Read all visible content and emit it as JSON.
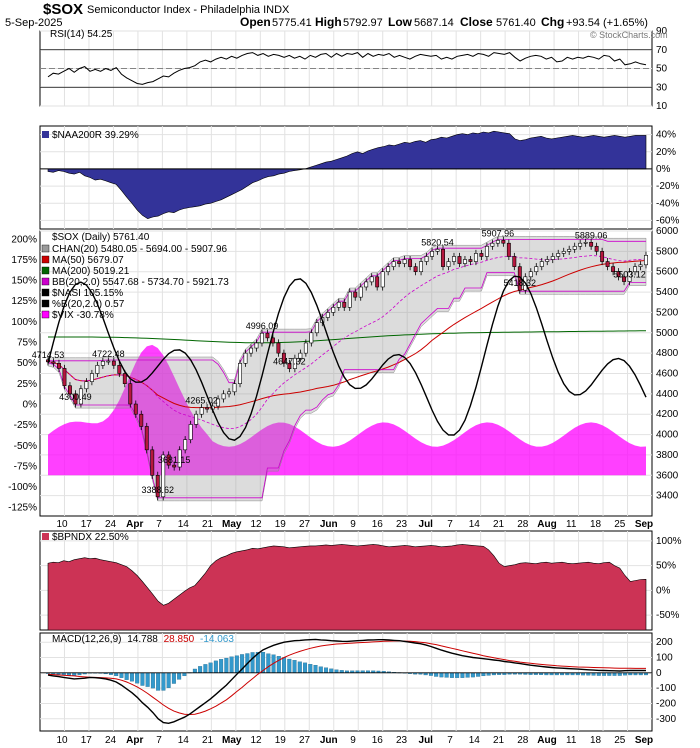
{
  "header": {
    "symbol": "$SOX",
    "name": "Semiconductor Index - Philadelphia INDX",
    "date": "5-Sep-2025",
    "open_label": "Open",
    "open": "5775.41",
    "high_label": "High",
    "high": "5792.97",
    "low_label": "Low",
    "low": "5687.14",
    "close_label": "Close",
    "close": "5761.40",
    "chg_label": "Chg",
    "chg": "+93.54 (+1.65%)",
    "watermark": "© StockCharts.com"
  },
  "colors": {
    "rsi_line": "#000000",
    "naa_fill": "#333399",
    "up_candle": "#ffffff",
    "down_candle": "#b5173e",
    "ma50": "#cc0000",
    "ma200": "#006600",
    "bb": "#cc00cc",
    "channel_fill": "#9a9a9a",
    "nasi": "#000000",
    "vix": "#ff00ff",
    "bpndx_fill": "#cc3355",
    "macd": "#000000",
    "signal": "#cc0000",
    "hist": "#3399cc"
  },
  "chart_data": [
    {
      "type": "line",
      "panel": "rsi",
      "legend": "RSI(14) 54.25",
      "ylim": [
        10,
        90
      ],
      "yticks": [
        10,
        30,
        50,
        70,
        90
      ],
      "reference_lines": [
        30,
        70
      ],
      "values": [
        41,
        45,
        44,
        47,
        50,
        46,
        50,
        52,
        47,
        49,
        47,
        50,
        48,
        51,
        44,
        40,
        37,
        34,
        33,
        35,
        36,
        39,
        42,
        41,
        45,
        48,
        50,
        51,
        53,
        57,
        59,
        57,
        60,
        62,
        60,
        63,
        61,
        64,
        66,
        67,
        64,
        66,
        63,
        65,
        64,
        62,
        64,
        61,
        63,
        60,
        64,
        62,
        65,
        66,
        62,
        66,
        63,
        66,
        65,
        67,
        62,
        66,
        63,
        65,
        64,
        66,
        62,
        64,
        62,
        60,
        63,
        65,
        64,
        63,
        64,
        60,
        62,
        60,
        63,
        64,
        65,
        63,
        66,
        65,
        63,
        67,
        66,
        65,
        67,
        62,
        58,
        61,
        63,
        64,
        63,
        60,
        62,
        57,
        58,
        62,
        60,
        62,
        61,
        63,
        62,
        60,
        64,
        63,
        58,
        60,
        54,
        55,
        57,
        55,
        54
      ]
    },
    {
      "type": "area",
      "panel": "naa200r",
      "legend": "$NAA200R 39.29%",
      "ylim": [
        -70,
        50
      ],
      "yticks": [
        -60,
        -40,
        -20,
        0,
        20,
        40
      ],
      "values": [
        -3,
        -4,
        -2,
        -3,
        -5,
        -6,
        -4,
        -8,
        -10,
        -13,
        -12,
        -14,
        -16,
        -18,
        -25,
        -33,
        -40,
        -48,
        -54,
        -58,
        -56,
        -55,
        -52,
        -50,
        -51,
        -48,
        -46,
        -45,
        -44,
        -43,
        -41,
        -40,
        -38,
        -36,
        -33,
        -30,
        -27,
        -24,
        -20,
        -16,
        -14,
        -11,
        -9,
        -8,
        -6,
        -5,
        -3,
        -2,
        -1,
        0,
        2,
        4,
        6,
        8,
        9,
        11,
        13,
        15,
        18,
        20,
        18,
        21,
        23,
        25,
        26,
        28,
        27,
        29,
        31,
        30,
        32,
        33,
        31,
        34,
        35,
        37,
        36,
        38,
        40,
        41,
        40,
        42,
        41,
        43,
        42,
        44,
        43,
        42,
        41,
        35,
        33,
        34,
        36,
        37,
        38,
        36,
        35,
        36,
        37,
        38,
        39,
        38,
        37,
        38,
        39,
        38,
        37,
        38,
        39,
        38,
        37,
        38,
        39,
        39,
        39
      ]
    },
    {
      "type": "candlestick",
      "panel": "price",
      "legend": "$SOX (Daily) 5761.40",
      "overlay_legends": [
        "CHAN(20) 5480.05 - 5694.00 - 5907.96",
        "MA(50) 5679.07",
        "MA(200) 5019.21",
        "BB(20,2.0) 5547.68 - 5734.70 - 5921.73",
        "$NASI 105.15%",
        "%B(20,2.0) 0.57",
        "$VIX -30.78%"
      ],
      "ylim": [
        3200,
        6000
      ],
      "yticks": [
        3400,
        3600,
        3800,
        4000,
        4200,
        4400,
        4600,
        4800,
        5000,
        5200,
        5400,
        5600,
        5800,
        6000
      ],
      "left_ylim": [
        -135,
        210
      ],
      "left_yticks": [
        "-125%",
        "-100%",
        "-75%",
        "-50%",
        "-25%",
        "0%",
        "25%",
        "50%",
        "75%",
        "100%",
        "125%",
        "150%",
        "175%",
        "200%"
      ],
      "close": [
        4714.53,
        4700,
        4650,
        4480,
        4400,
        4300.49,
        4450,
        4520,
        4600,
        4680,
        4720,
        4722.48,
        4680,
        4600,
        4500,
        4300,
        4200,
        4080,
        3850,
        3600,
        3388.62,
        3800,
        3700,
        3681.15,
        3850,
        3950,
        4100,
        4200,
        4265.02,
        4250,
        4280,
        4350,
        4400,
        4420,
        4500,
        4700,
        4800,
        4850,
        4900,
        4996.09,
        4950,
        4900,
        4800,
        4700,
        4647.32,
        4750,
        4800,
        4900,
        5000,
        5100,
        5150,
        5200,
        5250,
        5300,
        5250,
        5400,
        5350,
        5450,
        5500,
        5550,
        5450,
        5600,
        5650,
        5700,
        5680,
        5720,
        5650,
        5600,
        5700,
        5750,
        5800,
        5820.54,
        5650,
        5700,
        5750,
        5680,
        5720,
        5700,
        5780,
        5750,
        5850,
        5880,
        5907.96,
        5880,
        5750,
        5650,
        5418.32,
        5550,
        5600,
        5650,
        5700,
        5720,
        5750,
        5780,
        5800,
        5820,
        5850,
        5880,
        5889.06,
        5850,
        5800,
        5700,
        5650,
        5600,
        5550,
        5503.12,
        5600,
        5650,
        5667.86,
        5761.4
      ],
      "annotations": [
        {
          "label": "4714.53",
          "x": 0,
          "y": 4714.53
        },
        {
          "label": "4300.49",
          "x": 5,
          "y": 4300.49
        },
        {
          "label": "4722.48",
          "x": 11,
          "y": 4722.48
        },
        {
          "label": "4265.02",
          "x": 28,
          "y": 4265.02
        },
        {
          "label": "3681.15",
          "x": 23,
          "y": 3681.15
        },
        {
          "label": "3388.62",
          "x": 20,
          "y": 3388.62
        },
        {
          "label": "4996.09",
          "x": 39,
          "y": 4996.09
        },
        {
          "label": "4647.32",
          "x": 44,
          "y": 4647.32
        },
        {
          "label": "5820.54",
          "x": 71,
          "y": 5820.54
        },
        {
          "label": "5907.96",
          "x": 82,
          "y": 5907.96
        },
        {
          "label": "5418.32",
          "x": 86,
          "y": 5418.32
        },
        {
          "label": "5889.06",
          "x": 99,
          "y": 5889.06
        },
        {
          "label": "5503.12",
          "x": 106,
          "y": 5503.12
        }
      ],
      "x_ticks": [
        "10",
        "17",
        "24",
        "Apr",
        "7",
        "14",
        "21",
        "May",
        "12",
        "19",
        "27",
        "Jun",
        "9",
        "16",
        "23",
        "Jul",
        "7",
        "14",
        "21",
        "28",
        "Aug",
        "11",
        "18",
        "25",
        "Sep"
      ]
    },
    {
      "type": "area",
      "panel": "bpndx",
      "legend": "$BPNDX 22.50%",
      "ylim": [
        -80,
        120
      ],
      "yticks": [
        "-50%",
        "0%",
        "50%",
        "100%"
      ],
      "values": [
        55,
        57,
        56,
        60,
        58,
        62,
        64,
        66,
        64,
        65,
        62,
        60,
        58,
        56,
        52,
        48,
        40,
        30,
        18,
        5,
        -8,
        -22,
        -30,
        -26,
        -18,
        -10,
        -2,
        5,
        10,
        22,
        35,
        50,
        60,
        66,
        70,
        75,
        78,
        80,
        82,
        85,
        84,
        86,
        88,
        90,
        89,
        88,
        86,
        87,
        88,
        89,
        90,
        90,
        91,
        92,
        91,
        92,
        93,
        92,
        91,
        90,
        91,
        92,
        93,
        92,
        90,
        88,
        89,
        90,
        91,
        90,
        88,
        89,
        90,
        91,
        90,
        88,
        89,
        90,
        92,
        93,
        92,
        91,
        90,
        89,
        82,
        70,
        55,
        48,
        50,
        52,
        55,
        56,
        55,
        54,
        56,
        57,
        55,
        56,
        57,
        55,
        54,
        55,
        56,
        57,
        55,
        54,
        56,
        57,
        50,
        45,
        30,
        18,
        20,
        22,
        22.5
      ]
    },
    {
      "type": "line",
      "panel": "macd",
      "legend_name": "MACD(12,26,9)",
      "legend_macd": "14.788",
      "legend_signal": "28.850",
      "legend_hist": "-14.063",
      "ylim": [
        -380,
        260
      ],
      "yticks": [
        -300,
        -200,
        -100,
        0,
        100,
        200
      ],
      "macd": [
        -15,
        -20,
        -25,
        -30,
        -35,
        -40,
        -38,
        -35,
        -30,
        -32,
        -35,
        -40,
        -48,
        -60,
        -80,
        -105,
        -130,
        -160,
        -195,
        -225,
        -260,
        -300,
        -325,
        -330,
        -320,
        -305,
        -290,
        -270,
        -245,
        -220,
        -195,
        -170,
        -140,
        -110,
        -80,
        -45,
        -10,
        25,
        60,
        95,
        125,
        150,
        165,
        180,
        190,
        200,
        205,
        210,
        212,
        215,
        216,
        218,
        215,
        213,
        210,
        208,
        206,
        205,
        207,
        210,
        212,
        214,
        215,
        216,
        216,
        214,
        212,
        210,
        205,
        200,
        195,
        190,
        182,
        172,
        160,
        148,
        138,
        128,
        120,
        112,
        106,
        100,
        96,
        92,
        88,
        84,
        80,
        74,
        70,
        65,
        60,
        55,
        50,
        46,
        42,
        38,
        35,
        32,
        30,
        28,
        26,
        24,
        22,
        20,
        18,
        16,
        15,
        14,
        13,
        12,
        14,
        15,
        14.788,
        14.788,
        14.788
      ],
      "signal": [
        -10,
        -12,
        -14,
        -16,
        -18,
        -20,
        -24,
        -27,
        -29,
        -30,
        -31,
        -33,
        -36,
        -40,
        -48,
        -60,
        -75,
        -92,
        -112,
        -135,
        -160,
        -185,
        -210,
        -232,
        -250,
        -262,
        -270,
        -272,
        -270,
        -262,
        -250,
        -235,
        -218,
        -198,
        -176,
        -150,
        -122,
        -95,
        -66,
        -38,
        -10,
        15,
        40,
        62,
        82,
        100,
        115,
        128,
        140,
        150,
        160,
        168,
        175,
        180,
        184,
        188,
        190,
        192,
        194,
        196,
        198,
        200,
        202,
        204,
        206,
        207,
        208,
        208,
        207,
        206,
        204,
        200,
        196,
        190,
        184,
        176,
        168,
        160,
        152,
        144,
        136,
        128,
        120,
        112,
        105,
        98,
        92,
        86,
        80,
        75,
        70,
        66,
        62,
        58,
        55,
        52,
        49,
        46,
        44,
        42,
        40,
        38,
        37,
        36,
        35,
        34,
        33,
        32,
        31,
        30,
        29.5,
        29.2,
        29,
        28.9,
        28.85
      ]
    }
  ]
}
